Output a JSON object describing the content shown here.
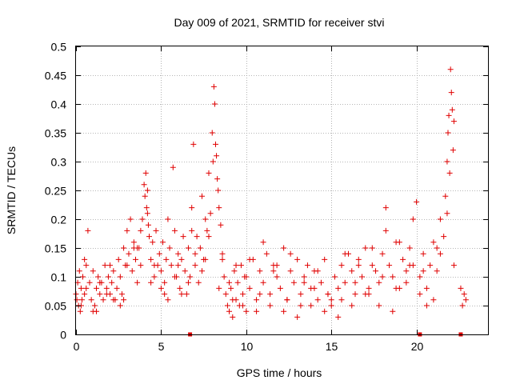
{
  "chart_data": {
    "type": "scatter",
    "title": "Day 009 of 2021, SRMTID for receiver stvi",
    "xlabel": "GPS time / hours",
    "ylabel": "SRMTID / TECUs",
    "xlim": [
      0,
      24.2
    ],
    "ylim": [
      0,
      0.5
    ],
    "xticks": [
      0,
      5,
      10,
      15,
      20
    ],
    "yticks": [
      0,
      0.05,
      0.1,
      0.15,
      0.2,
      0.25,
      0.3,
      0.35,
      0.4,
      0.45,
      0.5
    ],
    "grid": true,
    "legend": "none",
    "marker": "+",
    "color": "#e00000",
    "x": [
      0.0,
      0.05,
      0.1,
      0.15,
      0.2,
      0.25,
      0.3,
      0.35,
      0.4,
      0.5,
      0.6,
      0.7,
      0.8,
      0.9,
      1.0,
      1.1,
      1.2,
      1.3,
      1.4,
      1.5,
      1.6,
      1.7,
      1.8,
      1.9,
      2.0,
      2.1,
      2.2,
      2.3,
      2.4,
      2.5,
      2.6,
      2.7,
      2.8,
      2.9,
      3.0,
      3.1,
      3.2,
      3.3,
      3.4,
      3.5,
      3.6,
      3.7,
      3.8,
      3.9,
      4.0,
      4.05,
      4.1,
      4.15,
      4.2,
      4.25,
      4.3,
      4.4,
      4.5,
      4.6,
      4.7,
      4.8,
      4.9,
      5.0,
      5.1,
      5.2,
      5.3,
      5.4,
      5.5,
      5.6,
      5.7,
      5.8,
      5.9,
      6.0,
      6.1,
      6.2,
      6.3,
      6.4,
      6.5,
      6.6,
      6.7,
      6.8,
      6.9,
      7.0,
      7.1,
      7.2,
      7.3,
      7.4,
      7.5,
      7.6,
      7.7,
      7.8,
      7.9,
      8.0,
      8.05,
      8.1,
      8.15,
      8.2,
      8.25,
      8.3,
      8.35,
      8.4,
      8.5,
      8.6,
      8.7,
      8.8,
      8.9,
      9.0,
      9.1,
      9.2,
      9.3,
      9.4,
      9.5,
      9.6,
      9.7,
      9.8,
      9.9,
      10.0,
      10.2,
      10.4,
      10.6,
      10.8,
      11.0,
      11.2,
      11.4,
      11.6,
      11.8,
      12.0,
      12.2,
      12.4,
      12.6,
      12.8,
      13.0,
      13.2,
      13.4,
      13.6,
      13.8,
      14.0,
      14.2,
      14.4,
      14.6,
      14.8,
      15.0,
      15.2,
      15.4,
      15.6,
      15.8,
      16.0,
      16.2,
      16.4,
      16.6,
      16.8,
      17.0,
      17.2,
      17.4,
      17.6,
      17.8,
      18.0,
      18.2,
      18.4,
      18.6,
      18.8,
      19.0,
      19.2,
      19.4,
      19.6,
      19.8,
      20.0,
      20.2,
      20.4,
      20.6,
      20.8,
      21.0,
      21.2,
      21.4,
      21.6,
      21.7,
      21.8,
      21.85,
      21.9,
      21.95,
      22.0,
      22.05,
      22.1,
      22.15,
      22.2,
      22.6,
      22.7,
      22.8,
      22.9,
      0.3,
      0.6,
      1.0,
      1.4,
      1.8,
      2.2,
      2.6,
      3.0,
      3.4,
      3.8,
      4.2,
      4.6,
      5.0,
      5.4,
      5.8,
      6.2,
      6.6,
      7.0,
      7.4,
      7.8,
      8.6,
      9.0,
      9.4,
      9.8,
      10.2,
      10.6,
      11.0,
      11.4,
      11.8,
      12.2,
      12.6,
      13.0,
      13.4,
      13.8,
      14.2,
      14.6,
      15.0,
      15.4,
      15.8,
      16.2,
      16.6,
      17.0,
      17.4,
      17.8,
      18.2,
      18.6,
      19.0,
      19.4,
      19.8,
      20.2,
      20.6,
      21.0,
      21.4,
      21.8,
      22.2,
      0.5,
      1.2,
      2.0,
      2.8,
      3.6,
      4.4,
      5.2,
      6.0,
      6.8,
      7.6,
      8.4,
      9.2,
      10.0,
      10.8,
      11.6,
      12.4,
      13.2,
      14.0,
      14.8,
      15.6,
      16.4,
      17.2,
      18.0,
      18.8,
      19.6,
      20.4,
      21.2,
      6.7,
      20.2,
      22.6
    ],
    "y": [
      0.07,
      0.06,
      0.09,
      0.05,
      0.11,
      0.04,
      0.08,
      0.06,
      0.1,
      0.07,
      0.12,
      0.18,
      0.09,
      0.06,
      0.11,
      0.05,
      0.08,
      0.1,
      0.07,
      0.09,
      0.06,
      0.12,
      0.08,
      0.1,
      0.07,
      0.09,
      0.11,
      0.06,
      0.08,
      0.13,
      0.1,
      0.07,
      0.15,
      0.12,
      0.18,
      0.14,
      0.2,
      0.11,
      0.16,
      0.13,
      0.09,
      0.15,
      0.12,
      0.2,
      0.26,
      0.24,
      0.28,
      0.22,
      0.25,
      0.19,
      0.17,
      0.13,
      0.16,
      0.1,
      0.18,
      0.12,
      0.14,
      0.11,
      0.16,
      0.09,
      0.13,
      0.2,
      0.15,
      0.12,
      0.29,
      0.18,
      0.1,
      0.14,
      0.08,
      0.13,
      0.17,
      0.11,
      0.07,
      0.15,
      0.1,
      0.22,
      0.33,
      0.12,
      0.17,
      0.09,
      0.15,
      0.24,
      0.13,
      0.2,
      0.18,
      0.28,
      0.21,
      0.35,
      0.3,
      0.43,
      0.4,
      0.33,
      0.31,
      0.27,
      0.25,
      0.22,
      0.19,
      0.14,
      0.1,
      0.07,
      0.05,
      0.04,
      0.08,
      0.03,
      0.11,
      0.06,
      0.09,
      0.05,
      0.12,
      0.07,
      0.1,
      0.04,
      0.08,
      0.13,
      0.06,
      0.11,
      0.09,
      0.14,
      0.07,
      0.12,
      0.1,
      0.08,
      0.15,
      0.06,
      0.11,
      0.09,
      0.13,
      0.07,
      0.1,
      0.12,
      0.08,
      0.11,
      0.06,
      0.09,
      0.13,
      0.07,
      0.05,
      0.1,
      0.08,
      0.12,
      0.09,
      0.14,
      0.11,
      0.07,
      0.13,
      0.1,
      0.15,
      0.08,
      0.12,
      0.11,
      0.09,
      0.14,
      0.22,
      0.12,
      0.1,
      0.16,
      0.08,
      0.13,
      0.11,
      0.15,
      0.12,
      0.23,
      0.1,
      0.14,
      0.08,
      0.12,
      0.16,
      0.11,
      0.2,
      0.17,
      0.24,
      0.3,
      0.35,
      0.38,
      0.28,
      0.46,
      0.42,
      0.39,
      0.32,
      0.37,
      0.08,
      0.05,
      0.07,
      0.06,
      0.05,
      0.08,
      0.04,
      0.09,
      0.07,
      0.06,
      0.05,
      0.12,
      0.15,
      0.18,
      0.21,
      0.12,
      0.08,
      0.06,
      0.1,
      0.07,
      0.09,
      0.14,
      0.11,
      0.17,
      0.13,
      0.09,
      0.12,
      0.05,
      0.13,
      0.04,
      0.16,
      0.05,
      0.12,
      0.04,
      0.14,
      0.03,
      0.09,
      0.05,
      0.11,
      0.04,
      0.06,
      0.03,
      0.14,
      0.05,
      0.12,
      0.07,
      0.15,
      0.05,
      0.18,
      0.04,
      0.16,
      0.09,
      0.2,
      0.07,
      0.05,
      0.06,
      0.14,
      0.21,
      0.12,
      0.13,
      0.04,
      0.12,
      0.06,
      0.15,
      0.09,
      0.07,
      0.12,
      0.18,
      0.13,
      0.08,
      0.06,
      0.1,
      0.07,
      0.11,
      0.06,
      0.05,
      0.08,
      0.07,
      0.06,
      0.09,
      0.07,
      0.1,
      0.08,
      0.12,
      0.11,
      0.15,
      0.0,
      0.0,
      0.0
    ]
  }
}
